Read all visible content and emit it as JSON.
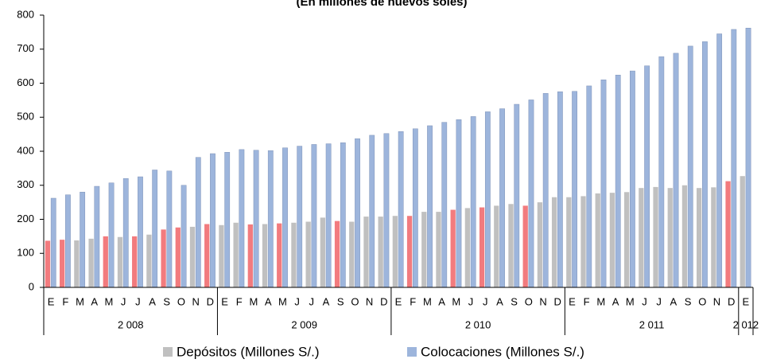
{
  "chart_data": {
    "type": "bar",
    "title": "(En millones de nuevos soles)",
    "categories": [
      "E",
      "F",
      "M",
      "A",
      "M",
      "J",
      "J",
      "A",
      "S",
      "O",
      "N",
      "D",
      "E",
      "F",
      "M",
      "A",
      "M",
      "J",
      "J",
      "A",
      "S",
      "O",
      "N",
      "D",
      "E",
      "F",
      "M",
      "A",
      "M",
      "J",
      "J",
      "A",
      "S",
      "O",
      "N",
      "D",
      "E",
      "F",
      "M",
      "A",
      "M",
      "J",
      "J",
      "A",
      "S",
      "O",
      "N",
      "D",
      "E"
    ],
    "year_groups": [
      {
        "label": "2 008",
        "months": 12
      },
      {
        "label": "2 009",
        "months": 12
      },
      {
        "label": "2 010",
        "months": 12
      },
      {
        "label": "2 011",
        "months": 12
      },
      {
        "label": "2 012",
        "months": 1
      }
    ],
    "series": [
      {
        "name": "Depósitos (Millones S/.)",
        "color": "#c0c0c0",
        "colors": [
          "#f27b7e",
          "#f27b7e",
          "#c0c0c0",
          "#c0c0c0",
          "#f27b7e",
          "#c0c0c0",
          "#f27b7e",
          "#c0c0c0",
          "#f27b7e",
          "#f27b7e",
          "#c0c0c0",
          "#f27b7e",
          "#c0c0c0",
          "#c0c0c0",
          "#f27b7e",
          "#c0c0c0",
          "#f27b7e",
          "#c0c0c0",
          "#c0c0c0",
          "#c0c0c0",
          "#f27b7e",
          "#c0c0c0",
          "#c0c0c0",
          "#c0c0c0",
          "#c0c0c0",
          "#f27b7e",
          "#c0c0c0",
          "#c0c0c0",
          "#f27b7e",
          "#c0c0c0",
          "#f27b7e",
          "#c0c0c0",
          "#c0c0c0",
          "#f27b7e",
          "#c0c0c0",
          "#c0c0c0",
          "#c0c0c0",
          "#c0c0c0",
          "#c0c0c0",
          "#c0c0c0",
          "#c0c0c0",
          "#c0c0c0",
          "#c0c0c0",
          "#c0c0c0",
          "#c0c0c0",
          "#c0c0c0",
          "#c0c0c0",
          "#f27b7e",
          "#c0c0c0"
        ],
        "values": [
          137,
          140,
          138,
          143,
          150,
          148,
          150,
          155,
          170,
          176,
          178,
          186,
          183,
          190,
          185,
          186,
          188,
          190,
          193,
          205,
          195,
          193,
          208,
          208,
          210,
          210,
          222,
          222,
          228,
          233,
          235,
          240,
          245,
          240,
          250,
          265,
          265,
          268,
          276,
          278,
          280,
          292,
          295,
          292,
          300,
          292,
          294,
          312,
          327
        ]
      },
      {
        "name": "Colocaciones (Millones S/.)",
        "color": "#9db5dc",
        "values": [
          262,
          272,
          280,
          297,
          307,
          320,
          325,
          345,
          342,
          300,
          382,
          393,
          397,
          405,
          403,
          402,
          410,
          415,
          420,
          422,
          425,
          437,
          447,
          452,
          458,
          466,
          475,
          485,
          493,
          502,
          516,
          525,
          538,
          551,
          570,
          575,
          576,
          592,
          610,
          624,
          636,
          651,
          678,
          688,
          709,
          722,
          745,
          758,
          762
        ]
      }
    ],
    "ylim": [
      0,
      800
    ],
    "yticks": [
      0,
      100,
      200,
      300,
      400,
      500,
      600,
      700,
      800
    ],
    "grid": false
  }
}
